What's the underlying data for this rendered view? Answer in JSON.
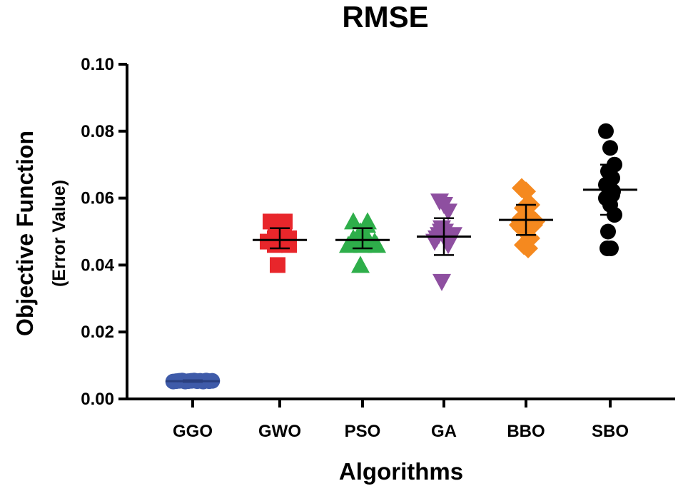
{
  "chart_data": {
    "type": "scatter",
    "title": "RMSE",
    "xlabel": "Algorithms",
    "ylabel": "Objective Function",
    "ylabel_sub": "(Error Value)",
    "ylim": [
      0,
      0.1
    ],
    "yticks": [
      0.0,
      0.02,
      0.04,
      0.06,
      0.08,
      0.1
    ],
    "ytick_labels": [
      "0.00",
      "0.02",
      "0.04",
      "0.06",
      "0.08",
      "0.10"
    ],
    "grid": false,
    "categories": [
      "GGO",
      "GWO",
      "PSO",
      "GA",
      "BBO",
      "SBO"
    ],
    "series": [
      {
        "name": "GGO",
        "color": "#3F5BA9",
        "marker": "circle",
        "values": [
          0.0052,
          0.0053,
          0.0054,
          0.0055,
          0.0052,
          0.0053,
          0.0054,
          0.0055,
          0.0053,
          0.0054,
          0.0052,
          0.0055,
          0.0053,
          0.0054
        ],
        "mean": 0.0053,
        "sd_low": 0.0051,
        "sd_high": 0.0056
      },
      {
        "name": "GWO",
        "color": "#E8262B",
        "marker": "square",
        "values": [
          0.053,
          0.053,
          0.052,
          0.051,
          0.05,
          0.049,
          0.048,
          0.048,
          0.047,
          0.047,
          0.047,
          0.046,
          0.046,
          0.04
        ],
        "mean": 0.0475,
        "sd_low": 0.045,
        "sd_high": 0.051
      },
      {
        "name": "PSO",
        "color": "#2EAE4A",
        "marker": "triangle-up",
        "values": [
          0.053,
          0.053,
          0.052,
          0.05,
          0.049,
          0.048,
          0.048,
          0.047,
          0.047,
          0.047,
          0.046,
          0.046,
          0.046,
          0.04
        ],
        "mean": 0.0475,
        "sd_low": 0.045,
        "sd_high": 0.051
      },
      {
        "name": "GA",
        "color": "#8E4FA0",
        "marker": "triangle-down",
        "values": [
          0.059,
          0.058,
          0.056,
          0.051,
          0.05,
          0.05,
          0.049,
          0.049,
          0.048,
          0.048,
          0.047,
          0.047,
          0.046,
          0.035
        ],
        "mean": 0.0485,
        "sd_low": 0.043,
        "sd_high": 0.054
      },
      {
        "name": "BBO",
        "color": "#F5891F",
        "marker": "diamond",
        "values": [
          0.063,
          0.062,
          0.058,
          0.057,
          0.055,
          0.054,
          0.053,
          0.053,
          0.052,
          0.052,
          0.051,
          0.05,
          0.048,
          0.046,
          0.045
        ],
        "mean": 0.0535,
        "sd_low": 0.049,
        "sd_high": 0.058
      },
      {
        "name": "SBO",
        "color": "#000000",
        "marker": "circle",
        "values": [
          0.08,
          0.075,
          0.07,
          0.068,
          0.066,
          0.064,
          0.063,
          0.062,
          0.062,
          0.061,
          0.06,
          0.058,
          0.055,
          0.05,
          0.045,
          0.045
        ],
        "mean": 0.0625,
        "sd_low": 0.055,
        "sd_high": 0.07
      }
    ]
  }
}
